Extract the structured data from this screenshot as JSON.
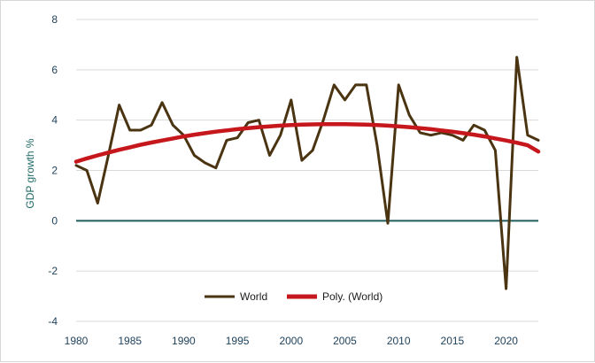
{
  "chart_data": {
    "type": "line",
    "title": "",
    "xlabel": "",
    "ylabel": "GDP growth %",
    "xlim": [
      1980,
      2023
    ],
    "ylim": [
      -4,
      8
    ],
    "x_ticks": [
      1980,
      1985,
      1990,
      1995,
      2000,
      2005,
      2010,
      2015,
      2020
    ],
    "y_ticks": [
      -4,
      -2,
      0,
      2,
      4,
      6,
      8
    ],
    "grid": "horizontal",
    "legend_position": "bottom-center",
    "x": [
      1980,
      1981,
      1982,
      1983,
      1984,
      1985,
      1986,
      1987,
      1988,
      1989,
      1990,
      1991,
      1992,
      1993,
      1994,
      1995,
      1996,
      1997,
      1998,
      1999,
      2000,
      2001,
      2002,
      2003,
      2004,
      2005,
      2006,
      2007,
      2008,
      2009,
      2010,
      2011,
      2012,
      2013,
      2014,
      2015,
      2016,
      2017,
      2018,
      2019,
      2020,
      2021,
      2022,
      2023
    ],
    "series": [
      {
        "name": "World",
        "color": "#4a3411",
        "values": [
          2.2,
          2.0,
          0.7,
          2.6,
          4.6,
          3.6,
          3.6,
          3.8,
          4.7,
          3.8,
          3.4,
          2.6,
          2.3,
          2.1,
          3.2,
          3.3,
          3.9,
          4.0,
          2.6,
          3.4,
          4.8,
          2.4,
          2.8,
          4.0,
          5.4,
          4.8,
          5.4,
          5.4,
          3.0,
          -0.1,
          5.4,
          4.2,
          3.5,
          3.4,
          3.5,
          3.4,
          3.2,
          3.8,
          3.6,
          2.8,
          -2.7,
          6.5,
          3.4,
          3.2
        ]
      },
      {
        "name": "Poly. (World)",
        "color": "#c6171d",
        "values": [
          2.35,
          2.48,
          2.6,
          2.71,
          2.82,
          2.92,
          3.02,
          3.11,
          3.19,
          3.27,
          3.35,
          3.42,
          3.48,
          3.54,
          3.59,
          3.64,
          3.68,
          3.72,
          3.75,
          3.78,
          3.8,
          3.82,
          3.83,
          3.84,
          3.84,
          3.84,
          3.83,
          3.82,
          3.8,
          3.78,
          3.75,
          3.72,
          3.68,
          3.64,
          3.59,
          3.54,
          3.48,
          3.42,
          3.35,
          3.27,
          3.19,
          3.1,
          3.0,
          2.75
        ]
      }
    ]
  },
  "colors": {
    "zero_line": "#1f5b5b",
    "grid": "#d9d9d9",
    "axis_text": "#20435e"
  }
}
